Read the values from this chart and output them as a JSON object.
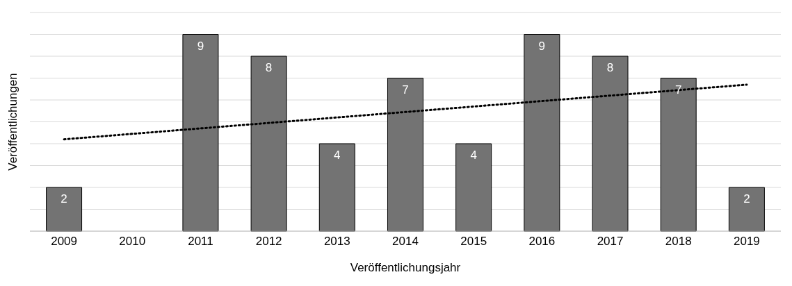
{
  "chart_data": {
    "type": "bar",
    "xlabel": "Veröffentlichungsjahr",
    "ylabel": "Veröffentlichungen",
    "categories": [
      "2009",
      "2010",
      "2011",
      "2012",
      "2013",
      "2014",
      "2015",
      "2016",
      "2017",
      "2018",
      "2019"
    ],
    "series": [
      {
        "color": "#737373",
        "values": [
          2,
          0,
          9,
          8,
          4,
          7,
          4,
          9,
          8,
          7,
          2
        ],
        "value_labels": [
          "2",
          null,
          "9",
          "8",
          "4",
          "7",
          "4",
          "9",
          "8",
          "7",
          "2"
        ]
      },
      {
        "type": "line",
        "color": "#000000",
        "line_style": "dotted",
        "values": [
          4.2,
          null,
          null,
          null,
          null,
          null,
          null,
          null,
          null,
          null,
          6.7
        ]
      }
    ],
    "grid": "y",
    "tick_labels": "x",
    "marker": "none"
  }
}
